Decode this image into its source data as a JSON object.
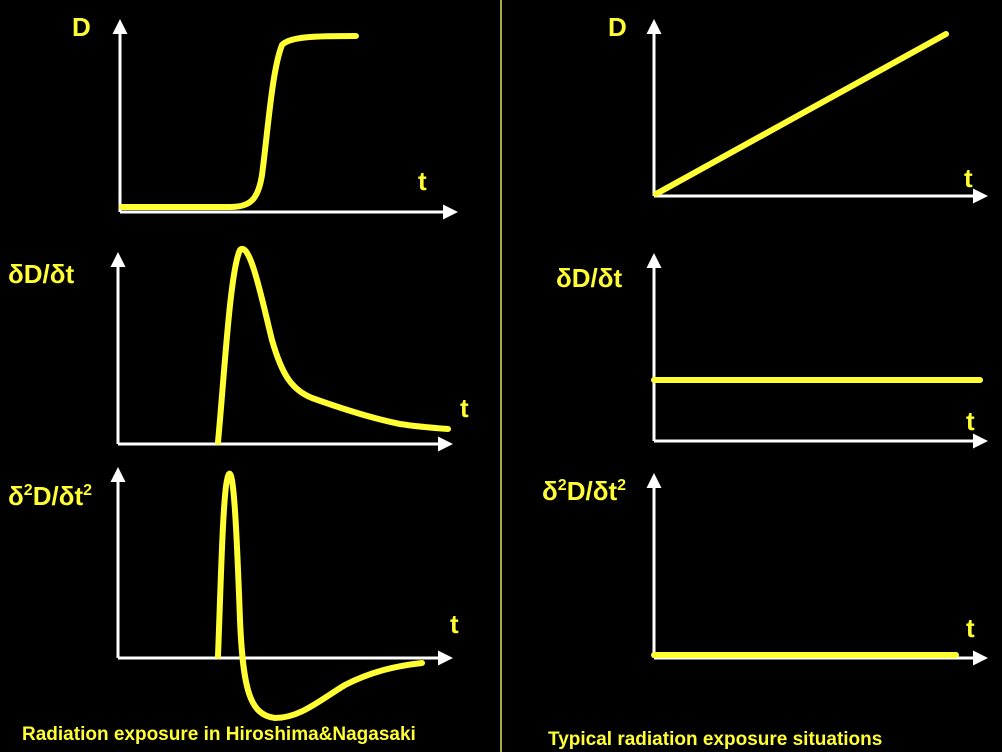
{
  "left": {
    "caption": "Radiation exposure in Hiroshima&Nagasaki",
    "panels": [
      {
        "ylabel": "D",
        "xlabel": "t"
      },
      {
        "ylabel_base": "δD/δt",
        "xlabel": "t"
      },
      {
        "ylabel_parts": [
          "δ",
          "2",
          "D/δt",
          "2"
        ],
        "xlabel": "t"
      }
    ]
  },
  "right": {
    "caption": "Typical radiation exposure situations",
    "panels": [
      {
        "ylabel": "D",
        "xlabel": "t"
      },
      {
        "ylabel_base": "δD/δt",
        "xlabel": "t"
      },
      {
        "ylabel_parts": [
          "δ",
          "2",
          "D/δt",
          "2"
        ],
        "xlabel": "t"
      }
    ]
  },
  "colors": {
    "curve": "#ffff33",
    "axis": "#ffffff",
    "background": "#000000"
  }
}
